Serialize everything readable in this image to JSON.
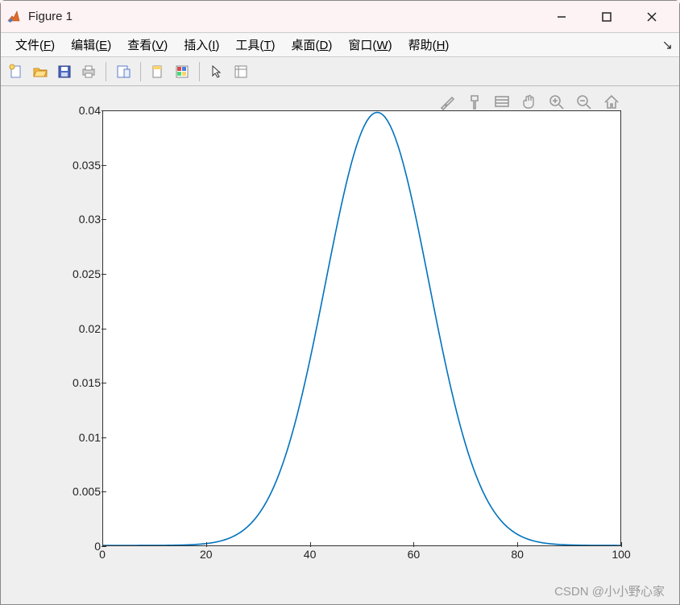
{
  "window": {
    "title": "Figure 1",
    "minimize_label": "Minimize",
    "maximize_label": "Maximize",
    "close_label": "Close"
  },
  "menubar": {
    "items": [
      {
        "label": "文件",
        "accel": "F"
      },
      {
        "label": "编辑",
        "accel": "E"
      },
      {
        "label": "查看",
        "accel": "V"
      },
      {
        "label": "插入",
        "accel": "I"
      },
      {
        "label": "工具",
        "accel": "T"
      },
      {
        "label": "桌面",
        "accel": "D"
      },
      {
        "label": "窗口",
        "accel": "W"
      },
      {
        "label": "帮助",
        "accel": "H"
      }
    ]
  },
  "toolbar": {
    "icons": [
      "new-file-icon",
      "open-folder-icon",
      "save-icon",
      "print-icon",
      "|",
      "page-setup-icon",
      "|",
      "data-cursor-icon",
      "colorbar-icon",
      "|",
      "pointer-icon",
      "insert-icon"
    ]
  },
  "figure_toolbar": {
    "icons": [
      "brush-icon",
      "format-icon",
      "measure-icon",
      "pan-icon",
      "zoom-in-icon",
      "zoom-out-icon",
      "home-icon"
    ]
  },
  "chart": {
    "type": "line",
    "background_color": "#ffffff",
    "axes_color": "#333333",
    "line_color": "#0072bd",
    "line_width": 1,
    "xlim": [
      0,
      100
    ],
    "ylim": [
      0,
      0.04
    ],
    "xticks": [
      0,
      20,
      40,
      60,
      80,
      100
    ],
    "yticks": [
      0,
      0.005,
      0.01,
      0.015,
      0.02,
      0.025,
      0.03,
      0.035,
      0.04
    ],
    "ytick_labels": [
      "0",
      "0.005",
      "0.01",
      "0.015",
      "0.02",
      "0.025",
      "0.03",
      "0.035",
      "0.04"
    ],
    "xtick_labels": [
      "0",
      "20",
      "40",
      "60",
      "80",
      "100"
    ],
    "tick_fontsize": 14,
    "series": {
      "mu": 53,
      "sigma": 10,
      "npoints": 201
    }
  },
  "watermark": "CSDN @小小野心家"
}
